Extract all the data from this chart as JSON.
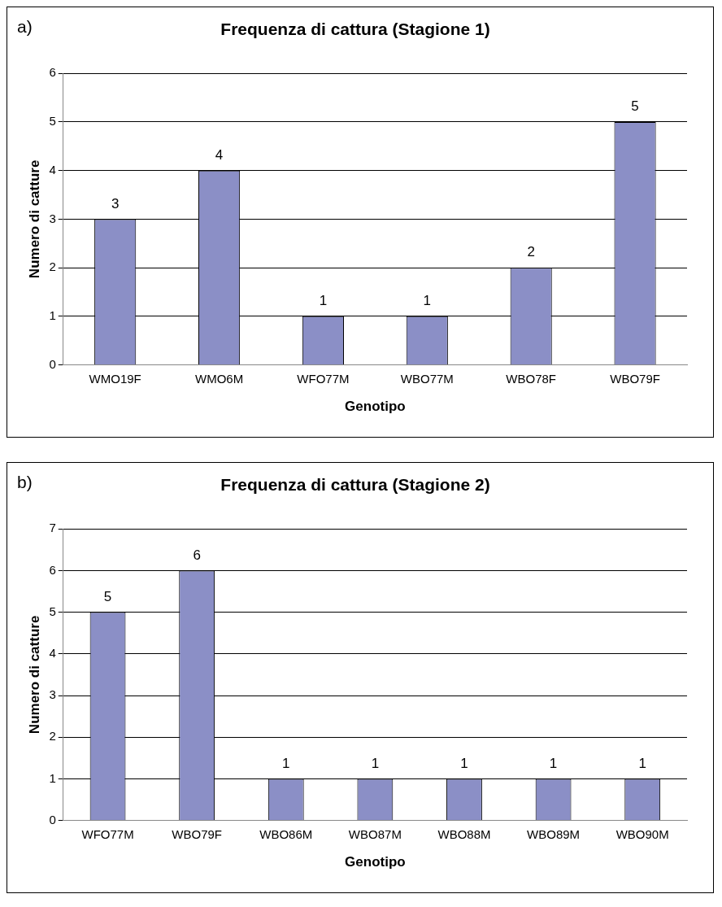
{
  "chart_data": [
    {
      "type": "bar",
      "title": "Frequenza di cattura (Stagione 1)",
      "xlabel": "Genotipo",
      "ylabel": "Numero di catture",
      "annotations": [
        "a)"
      ],
      "categories": [
        "WMO19F",
        "WMO6M",
        "WFO77M",
        "WBO77M",
        "WBO78F",
        "WBO79F"
      ],
      "values": [
        3,
        4,
        1,
        1,
        2,
        5
      ],
      "color": "#8b8fc6",
      "ylim": [
        0,
        6
      ],
      "yticks": [
        0,
        1,
        2,
        3,
        4,
        5,
        6
      ],
      "grid": "y",
      "data_labels": true,
      "legend": false
    },
    {
      "type": "bar",
      "title": "Frequenza di cattura (Stagione 2)",
      "xlabel": "Genotipo",
      "ylabel": "Numero di catture",
      "annotations": [
        "b)"
      ],
      "categories": [
        "WFO77M",
        "WBO79F",
        "WBO86M",
        "WBO87M",
        "WBO88M",
        "WBO89M",
        "WBO90M"
      ],
      "values": [
        5,
        6,
        1,
        1,
        1,
        1,
        1
      ],
      "color": "#8b8fc6",
      "ylim": [
        0,
        7
      ],
      "yticks": [
        0,
        1,
        2,
        3,
        4,
        5,
        6,
        7
      ],
      "grid": "y",
      "data_labels": true,
      "legend": false
    }
  ]
}
